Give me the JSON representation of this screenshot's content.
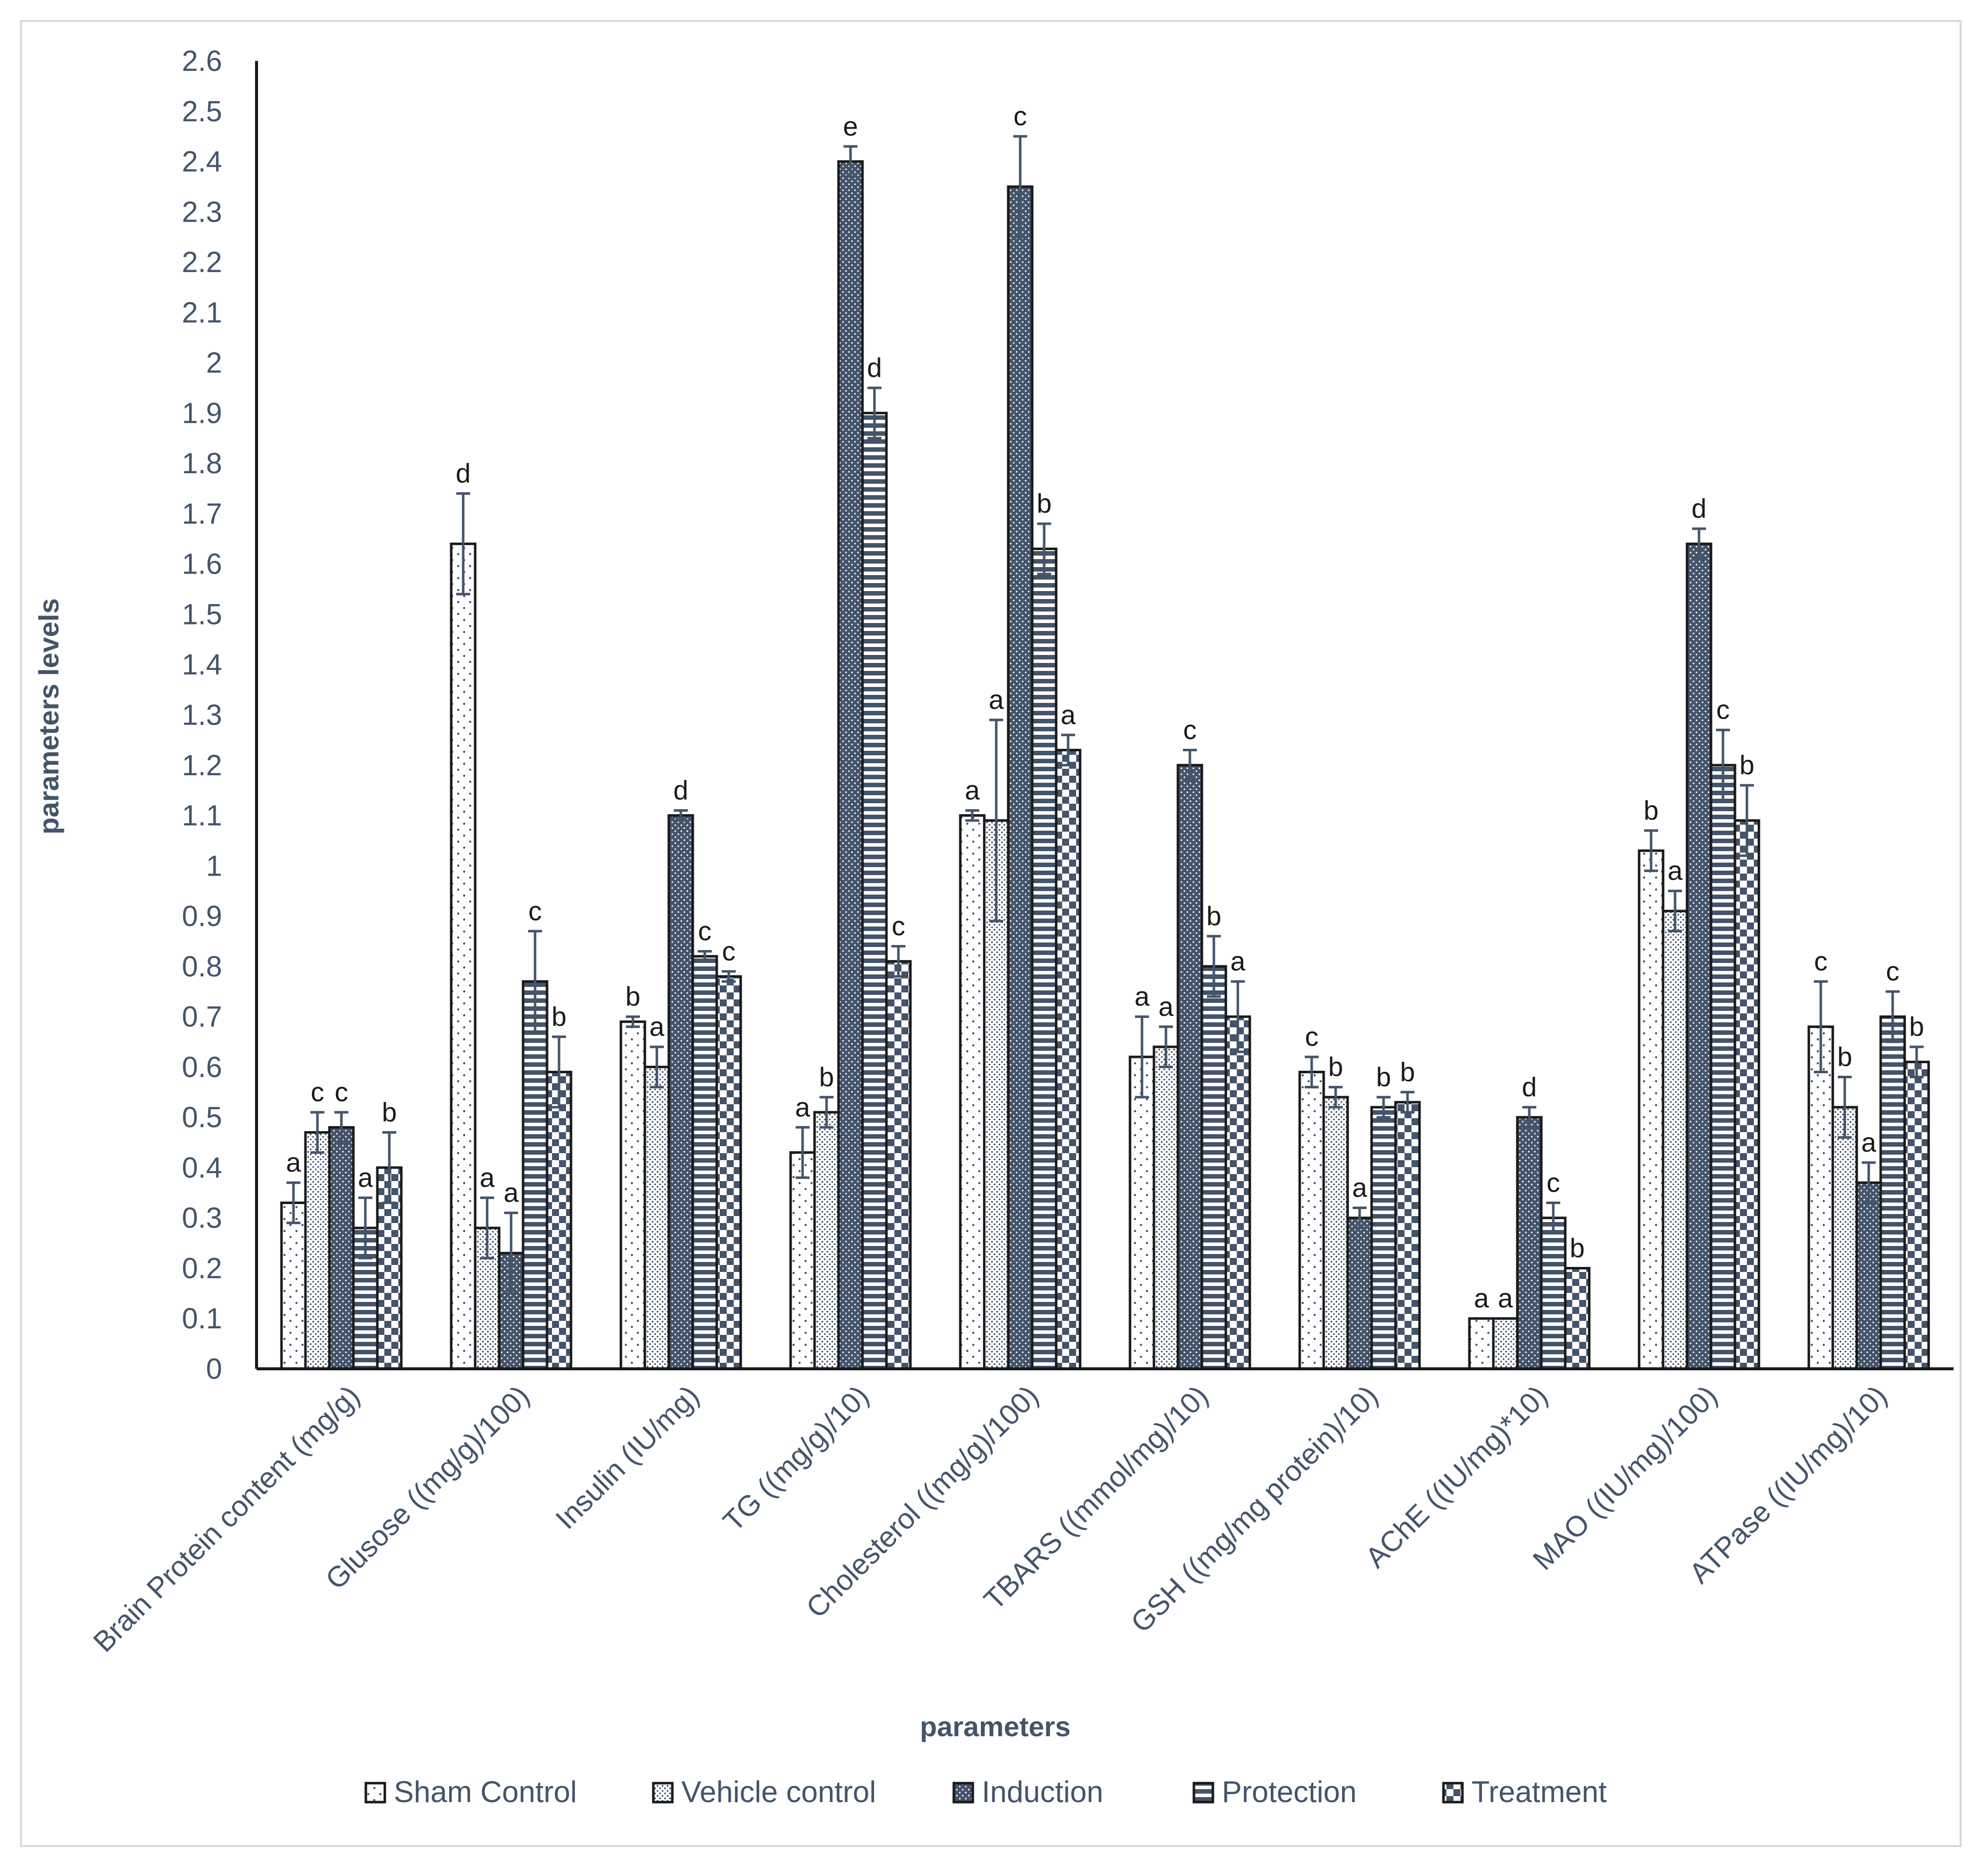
{
  "chart_data": {
    "type": "bar",
    "title": "",
    "xlabel": "parameters",
    "ylabel": "parameters levels",
    "ylim": [
      0,
      2.6
    ],
    "ytick_step": 0.1,
    "yticks": [
      "0",
      "0.1",
      "0.2",
      "0.3",
      "0.4",
      "0.5",
      "0.6",
      "0.7",
      "0.8",
      "0.9",
      "1",
      "1.1",
      "1.2",
      "1.3",
      "1.4",
      "1.5",
      "1.6",
      "1.7",
      "1.8",
      "1.9",
      "2",
      "2.1",
      "2.2",
      "2.3",
      "2.4",
      "2.5",
      "2.6"
    ],
    "legend_position": "bottom",
    "categories": [
      "Brain Protein content (mg/g)",
      "Glusose ((mg/g)/100)",
      "Insulin (IU/mg)",
      "TG ((mg/g)/10)",
      "Cholesterol ((mg/g)/100)",
      "TBARS ((mmol/mg)/10)",
      "GSH ((mg/mg protein)/10)",
      "AChE ((IU/mg)*10)",
      "MAO ((IU/mg)/100)",
      "ATPase ((IU/mg)/10)"
    ],
    "series": [
      {
        "name": "Sham Control",
        "pattern": "sparse-dots",
        "values": [
          0.33,
          1.64,
          0.69,
          0.43,
          1.1,
          0.62,
          0.59,
          0.1,
          1.03,
          0.68
        ],
        "errors": [
          0.04,
          0.1,
          0.01,
          0.05,
          0.01,
          0.08,
          0.03,
          0.0,
          0.04,
          0.09
        ],
        "letters": [
          "a",
          "d",
          "b",
          "a",
          "a",
          "a",
          "c",
          "a",
          "b",
          "c"
        ]
      },
      {
        "name": "Vehicle control",
        "pattern": "dense-dots",
        "values": [
          0.47,
          0.28,
          0.6,
          0.51,
          1.09,
          0.64,
          0.54,
          0.1,
          0.91,
          0.52
        ],
        "errors": [
          0.04,
          0.06,
          0.04,
          0.03,
          0.2,
          0.04,
          0.02,
          0.0,
          0.04,
          0.06
        ],
        "letters": [
          "c",
          "a",
          "a",
          "b",
          "a",
          "a",
          "b",
          "a",
          "a",
          "b"
        ]
      },
      {
        "name": "Induction",
        "pattern": "dark-dots",
        "values": [
          0.48,
          0.23,
          1.1,
          2.4,
          2.35,
          1.2,
          0.3,
          0.5,
          1.64,
          0.37
        ],
        "errors": [
          0.03,
          0.08,
          0.01,
          0.03,
          0.1,
          0.03,
          0.02,
          0.02,
          0.03,
          0.04
        ],
        "letters": [
          "c",
          "a",
          "d",
          "e",
          "c",
          "c",
          "a",
          "d",
          "d",
          "a"
        ]
      },
      {
        "name": "Protection",
        "pattern": "horizontal-stripes",
        "values": [
          0.28,
          0.77,
          0.82,
          1.9,
          1.63,
          0.8,
          0.52,
          0.3,
          1.2,
          0.7
        ],
        "errors": [
          0.06,
          0.1,
          0.01,
          0.05,
          0.05,
          0.06,
          0.02,
          0.03,
          0.07,
          0.05
        ],
        "letters": [
          "a",
          "c",
          "c",
          "d",
          "b",
          "b",
          "b",
          "c",
          "c",
          "c"
        ]
      },
      {
        "name": "Treatment",
        "pattern": "checker",
        "values": [
          0.4,
          0.59,
          0.78,
          0.81,
          1.23,
          0.7,
          0.53,
          0.2,
          1.09,
          0.61
        ],
        "errors": [
          0.07,
          0.07,
          0.01,
          0.03,
          0.03,
          0.07,
          0.02,
          0.0,
          0.07,
          0.03
        ],
        "letters": [
          "b",
          "b",
          "c",
          "c",
          "a",
          "a",
          "b",
          "b",
          "b",
          "b"
        ]
      }
    ]
  }
}
